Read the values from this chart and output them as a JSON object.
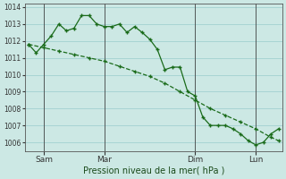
{
  "background_color": "#cce8e4",
  "grid_color": "#99cccc",
  "line_color": "#1a6b1a",
  "marker_color": "#1a6b1a",
  "title": "Pression niveau de la mer( hPa )",
  "ylim": [
    1005.5,
    1014.2
  ],
  "yticks": [
    1006,
    1007,
    1008,
    1009,
    1010,
    1011,
    1012,
    1013,
    1014
  ],
  "series1_x": [
    0,
    1,
    2,
    3,
    4,
    5,
    6,
    7,
    8,
    9,
    10,
    11,
    12,
    13,
    14,
    15,
    16,
    17,
    18,
    19,
    20,
    21,
    22,
    23,
    24,
    25,
    26,
    27,
    28,
    29,
    30,
    31,
    32,
    33
  ],
  "series1_y": [
    1011.8,
    1011.3,
    1011.8,
    1012.3,
    1013.0,
    1012.6,
    1012.75,
    1013.5,
    1013.5,
    1013.0,
    1012.85,
    1012.85,
    1013.0,
    1012.5,
    1012.85,
    1012.5,
    1012.1,
    1011.5,
    1010.3,
    1010.45,
    1010.45,
    1009.0,
    1008.75,
    1007.5,
    1007.0,
    1007.0,
    1007.0,
    1006.8,
    1006.5,
    1006.1,
    1005.85,
    1006.0,
    1006.5,
    1006.8
  ],
  "series2_x": [
    0,
    2,
    4,
    6,
    8,
    10,
    12,
    14,
    16,
    18,
    20,
    22,
    24,
    26,
    28,
    30,
    32,
    33
  ],
  "series2_y": [
    1011.8,
    1011.6,
    1011.4,
    1011.2,
    1011.0,
    1010.8,
    1010.5,
    1010.2,
    1009.9,
    1009.5,
    1009.0,
    1008.5,
    1008.0,
    1007.6,
    1007.2,
    1006.8,
    1006.3,
    1006.1
  ],
  "xtick_positions": [
    2,
    10,
    22,
    30
  ],
  "xtick_labels": [
    "Sam",
    "Mar",
    "Dim",
    "Lun"
  ],
  "vline_positions": [
    2,
    10,
    22,
    30
  ],
  "xlim": [
    -0.5,
    33.5
  ],
  "n_total": 33
}
